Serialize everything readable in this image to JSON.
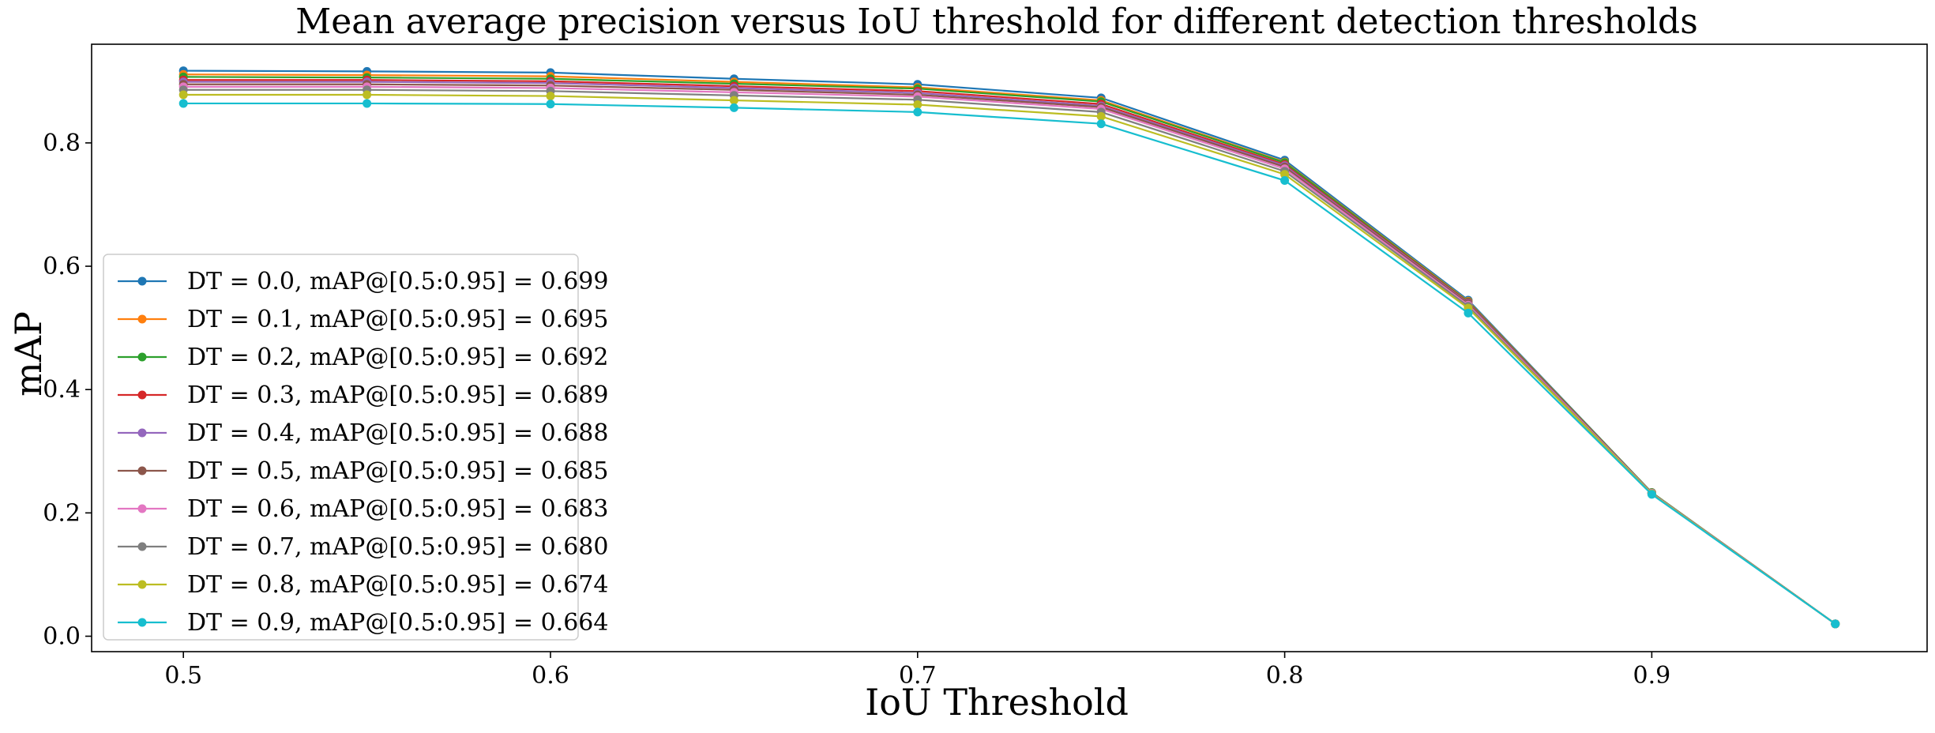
{
  "chart_data": {
    "type": "line",
    "title": "Mean average precision versus IoU threshold for different detection thresholds",
    "xlabel": "IoU Threshold",
    "ylabel": "mAP",
    "xlim": [
      0.475,
      0.975
    ],
    "ylim": [
      -0.025,
      0.96
    ],
    "xticks": [
      0.5,
      0.6,
      0.7,
      0.8,
      0.9
    ],
    "xtick_labels": [
      "0.5",
      "0.6",
      "0.7",
      "0.8",
      "0.9"
    ],
    "yticks": [
      0.0,
      0.2,
      0.4,
      0.6,
      0.8
    ],
    "ytick_labels": [
      "0.0",
      "0.2",
      "0.4",
      "0.6",
      "0.8"
    ],
    "grid": false,
    "legend_position": "lower-left",
    "x": [
      0.5,
      0.55,
      0.6,
      0.65,
      0.7,
      0.75,
      0.8,
      0.85,
      0.9,
      0.95
    ],
    "series": [
      {
        "name": "DT = 0.0, mAP@[0.5:0.95] = 0.699",
        "color": "#1f77b4",
        "values": [
          0.917,
          0.916,
          0.914,
          0.904,
          0.895,
          0.873,
          0.772,
          0.545,
          0.233,
          0.02
        ]
      },
      {
        "name": "DT = 0.1, mAP@[0.5:0.95] = 0.695",
        "color": "#ff7f0e",
        "values": [
          0.911,
          0.91,
          0.908,
          0.899,
          0.89,
          0.869,
          0.769,
          0.543,
          0.233,
          0.02
        ]
      },
      {
        "name": "DT = 0.2, mAP@[0.5:0.95] = 0.692",
        "color": "#2ca02c",
        "values": [
          0.907,
          0.906,
          0.904,
          0.896,
          0.888,
          0.867,
          0.768,
          0.542,
          0.233,
          0.02
        ]
      },
      {
        "name": "DT = 0.3, mAP@[0.5:0.95] = 0.689",
        "color": "#d62728",
        "values": [
          0.902,
          0.902,
          0.9,
          0.892,
          0.884,
          0.863,
          0.765,
          0.541,
          0.232,
          0.02
        ]
      },
      {
        "name": "DT = 0.4, mAP@[0.5:0.95] = 0.688",
        "color": "#9467bd",
        "values": [
          0.899,
          0.899,
          0.897,
          0.889,
          0.881,
          0.86,
          0.763,
          0.54,
          0.232,
          0.02
        ]
      },
      {
        "name": "DT = 0.5, mAP@[0.5:0.95] = 0.685",
        "color": "#8c564b",
        "values": [
          0.895,
          0.895,
          0.893,
          0.886,
          0.878,
          0.858,
          0.761,
          0.539,
          0.232,
          0.02
        ]
      },
      {
        "name": "DT = 0.6, mAP@[0.5:0.95] = 0.683",
        "color": "#e377c2",
        "values": [
          0.891,
          0.891,
          0.889,
          0.882,
          0.875,
          0.855,
          0.758,
          0.537,
          0.232,
          0.02
        ]
      },
      {
        "name": "DT = 0.7, mAP@[0.5:0.95] = 0.680",
        "color": "#7f7f7f",
        "values": [
          0.886,
          0.886,
          0.884,
          0.877,
          0.87,
          0.85,
          0.754,
          0.535,
          0.231,
          0.02
        ]
      },
      {
        "name": "DT = 0.8, mAP@[0.5:0.95] = 0.674",
        "color": "#bcbd22",
        "values": [
          0.878,
          0.878,
          0.876,
          0.869,
          0.862,
          0.843,
          0.749,
          0.532,
          0.231,
          0.02
        ]
      },
      {
        "name": "DT = 0.9, mAP@[0.5:0.95] = 0.664",
        "color": "#17becf",
        "values": [
          0.864,
          0.864,
          0.863,
          0.857,
          0.85,
          0.831,
          0.739,
          0.524,
          0.23,
          0.02
        ]
      }
    ]
  }
}
